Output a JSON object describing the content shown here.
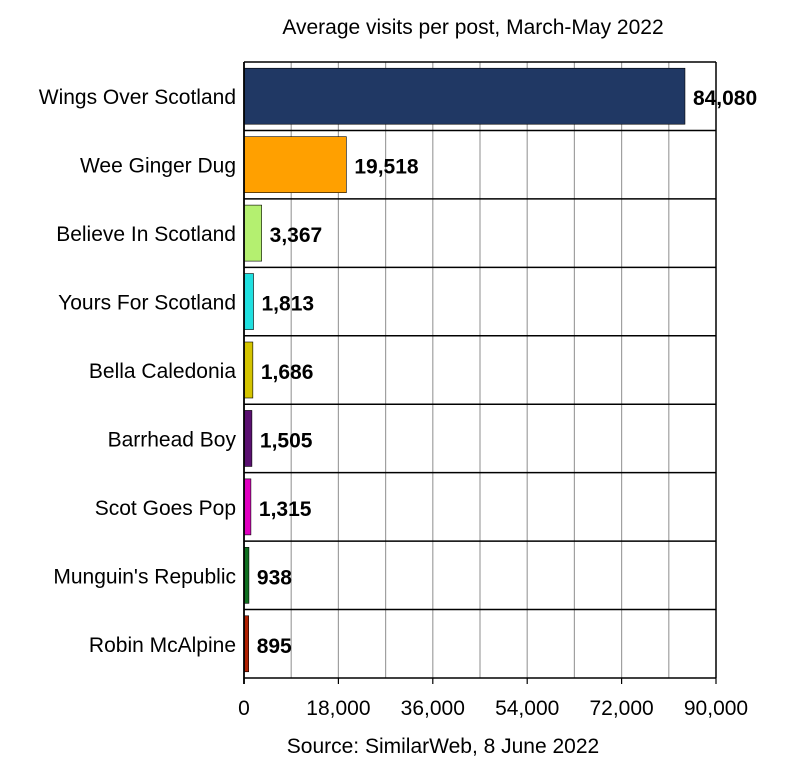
{
  "chart_data": {
    "type": "bar",
    "orientation": "horizontal",
    "title": "Average visits per post, March-May 2022",
    "source": "Source: SimilarWeb, 8 June 2022",
    "categories": [
      "Wings Over Scotland",
      "Wee Ginger Dug",
      "Believe In Scotland",
      "Yours For Scotland",
      "Bella Caledonia",
      "Barrhead Boy",
      "Scot Goes Pop",
      "Munguin's Republic",
      "Robin McAlpine"
    ],
    "values": [
      84080,
      19518,
      3367,
      1813,
      1686,
      1505,
      1315,
      938,
      895
    ],
    "value_labels": [
      "84,080",
      "19,518",
      "3,367",
      "1,813",
      "1,686",
      "1,505",
      "1,315",
      "938",
      "895"
    ],
    "colors": [
      "#203864",
      "#FFA000",
      "#B4F070",
      "#20E0E0",
      "#D4C400",
      "#5A1070",
      "#E000C0",
      "#107020",
      "#B02000"
    ],
    "xlim": [
      0,
      90000
    ],
    "xticks": [
      0,
      18000,
      36000,
      54000,
      72000,
      90000
    ],
    "xtick_labels": [
      "0",
      "18,000",
      "36,000",
      "54,000",
      "72,000",
      "90,000"
    ],
    "grid": true,
    "legend": "none"
  }
}
